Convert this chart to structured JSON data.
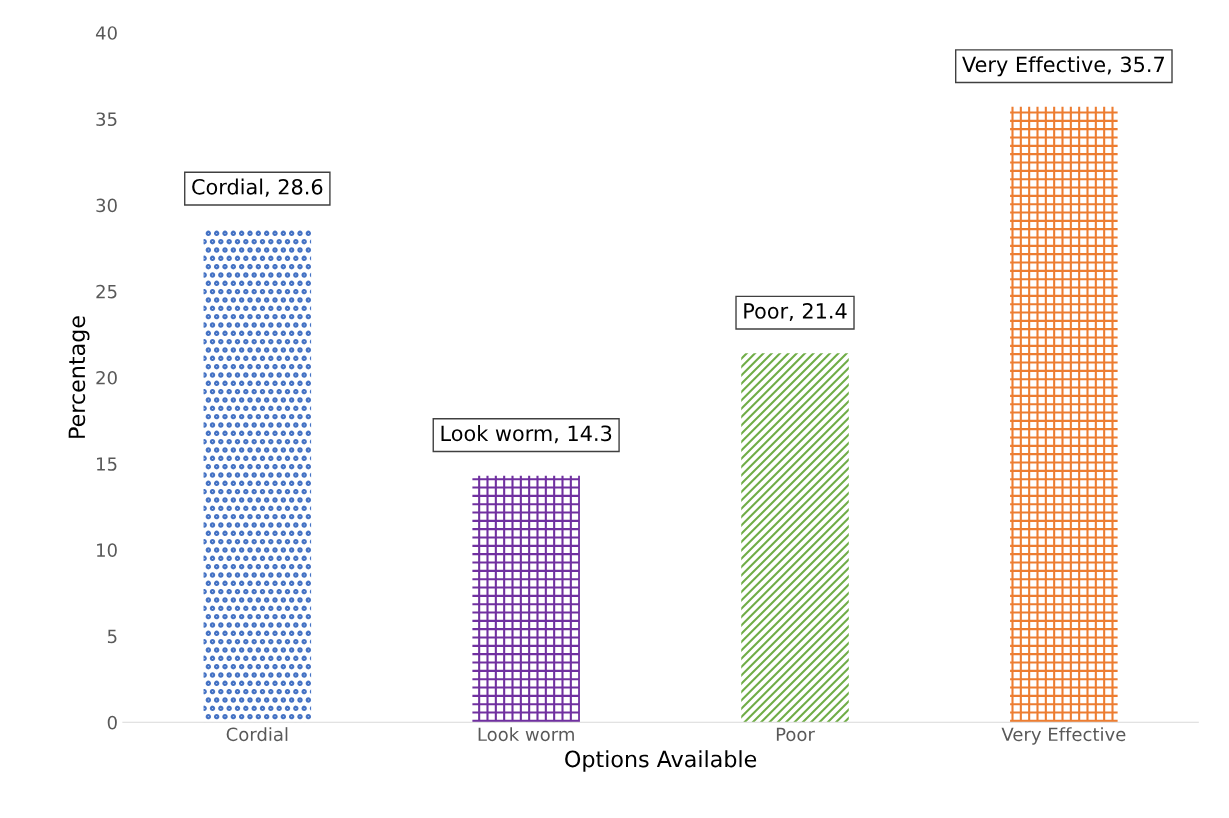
{
  "chart_data": {
    "type": "bar",
    "xlabel": "Options Available",
    "ylabel": "Percentage",
    "categories": [
      "Cordial",
      "Look worm",
      "Poor",
      "Very Effective"
    ],
    "values": [
      28.6,
      14.3,
      21.4,
      35.7
    ],
    "colors": [
      "#4472c4",
      "#7030a0",
      "#70ad47",
      "#ed7d31"
    ],
    "value_labels": [
      "Cordial, 28.6",
      "Look worm, 14.3",
      "Poor, 21.4",
      "Very Effective, 35.7"
    ],
    "ylim": [
      0,
      40
    ],
    "yticks": [
      0,
      5,
      10,
      15,
      20,
      25,
      30,
      35,
      40
    ],
    "grid": false,
    "legend": false
  }
}
